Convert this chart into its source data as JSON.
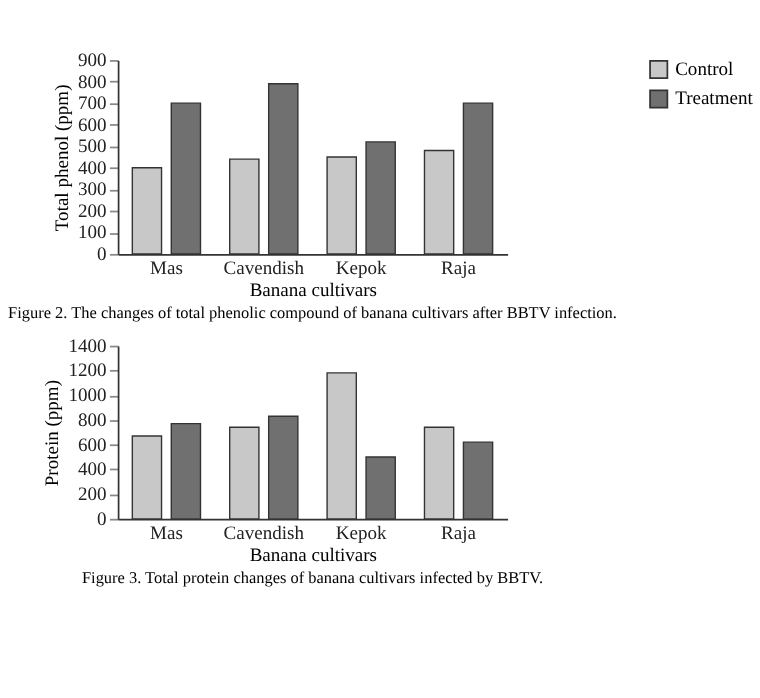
{
  "chart_data": [
    {
      "type": "bar",
      "xlabel": "Banana cultivars",
      "ylabel": "Total phenol (ppm)",
      "categories": [
        "Mas",
        "Cavendish",
        "Kepok",
        "Raja"
      ],
      "series": [
        {
          "name": "Control",
          "color": "#c8c8c8",
          "values": [
            400,
            440,
            450,
            480
          ]
        },
        {
          "name": "Treatment",
          "color": "#707070",
          "values": [
            700,
            790,
            520,
            700
          ]
        }
      ],
      "ylim": [
        0,
        900
      ],
      "yticks": [
        0,
        100,
        200,
        300,
        400,
        500,
        600,
        700,
        800,
        900
      ],
      "grid": false,
      "legend": "right",
      "annotations": [
        "Figure 2. The changes of total phenolic compound of banana cultivars after BBTV infection."
      ]
    },
    {
      "type": "bar",
      "xlabel": "Banana cultivars",
      "ylabel": "Protein (ppm)",
      "categories": [
        "Mas",
        "Cavendish",
        "Kepok",
        "Raja"
      ],
      "series": [
        {
          "name": "Control",
          "color": "#c8c8c8",
          "values": [
            670,
            740,
            1180,
            740
          ]
        },
        {
          "name": "Treatment",
          "color": "#707070",
          "values": [
            770,
            830,
            500,
            620
          ]
        }
      ],
      "ylim": [
        0,
        1400
      ],
      "yticks": [
        0,
        200,
        400,
        600,
        800,
        1000,
        1200,
        1400
      ],
      "grid": false,
      "legend": "right",
      "annotations": [
        "Figure 3. Total protein changes of banana cultivars infected by BBTV."
      ]
    }
  ]
}
